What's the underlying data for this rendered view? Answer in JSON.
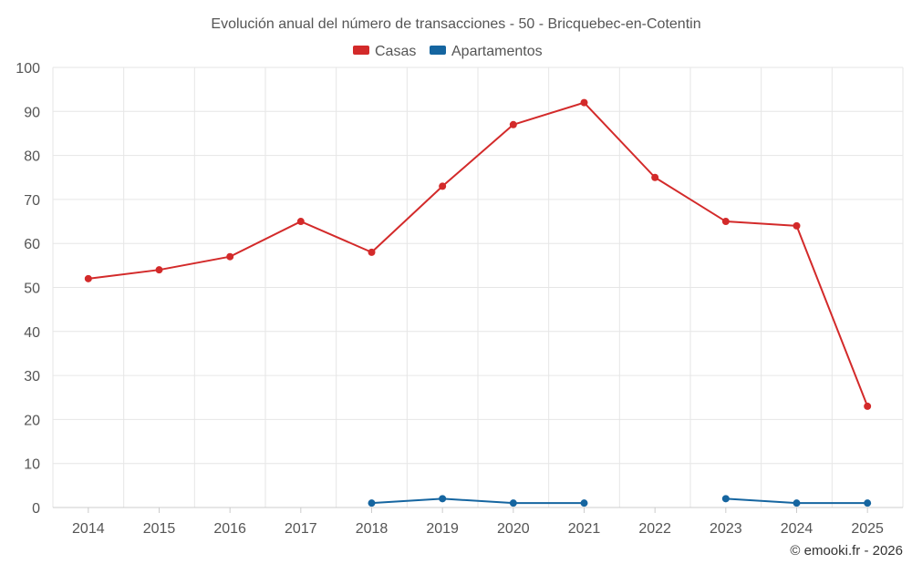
{
  "chart_data": {
    "type": "line",
    "title": "Evolución anual del número de transacciones - 50 - Bricquebec-en-Cotentin",
    "categories": [
      "2014",
      "2015",
      "2016",
      "2017",
      "2018",
      "2019",
      "2020",
      "2021",
      "2022",
      "2023",
      "2024",
      "2025"
    ],
    "series": [
      {
        "name": "Casas",
        "color": "#d32a2a",
        "values": [
          52,
          54,
          57,
          65,
          58,
          73,
          87,
          92,
          75,
          65,
          64,
          23
        ]
      },
      {
        "name": "Apartamentos",
        "color": "#1565a0",
        "values": [
          null,
          null,
          null,
          null,
          1,
          2,
          1,
          1,
          null,
          2,
          1,
          1
        ]
      }
    ],
    "ylim": [
      0,
      100
    ],
    "yticks": [
      0,
      10,
      20,
      30,
      40,
      50,
      60,
      70,
      80,
      90,
      100
    ],
    "xlabel": "",
    "ylabel": "",
    "grid": true,
    "legend": "top-center"
  },
  "credit": "© emooki.fr - 2026"
}
